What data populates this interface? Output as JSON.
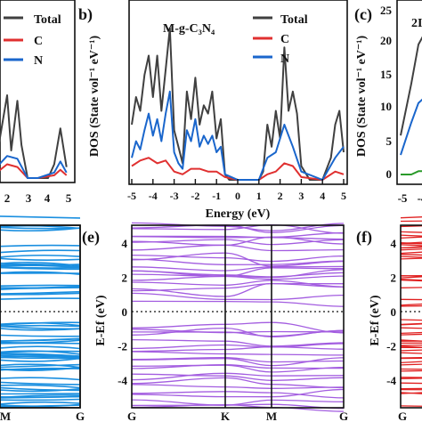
{
  "panels": [
    {
      "id": "a",
      "label": "",
      "xlabel": "",
      "legend": [
        "Total",
        "C",
        "N"
      ],
      "xticks": [
        "2",
        "3",
        "4",
        "5"
      ]
    },
    {
      "id": "b",
      "label": "b)",
      "title": "M-g-C₃N₄",
      "xlabel": "Energy (eV)",
      "ylabel": "DOS (State vol⁻¹ eV⁻¹)",
      "legend": [
        "Total",
        "C",
        "N"
      ],
      "xticks": [
        "-5",
        "-4",
        "-3",
        "-2",
        "-1",
        "0",
        "1",
        "2",
        "3",
        "4",
        "5"
      ]
    },
    {
      "id": "c",
      "label": "(c)",
      "title": "2I",
      "ylabel": "DOS (State vol⁻¹ eV⁻¹)",
      "yticks": [
        "25",
        "20",
        "15",
        "10",
        "5",
        "0"
      ],
      "xticks": [
        "-5",
        "-4"
      ]
    },
    {
      "id": "d",
      "label": "",
      "xticks": [
        "M",
        "G"
      ]
    },
    {
      "id": "e",
      "label": "(e)",
      "ylabel": "E-Ef (eV)",
      "yticks": [
        "4",
        "2",
        "0",
        "-2",
        "-4"
      ],
      "kpoints": [
        "G",
        "K",
        "M",
        "G"
      ]
    },
    {
      "id": "f",
      "label": "(f)",
      "ylabel": "E-Ef (eV)",
      "yticks": [
        "4",
        "2",
        "0",
        "-2",
        "-4"
      ],
      "xticks": [
        "G"
      ]
    }
  ],
  "chart_data": [
    {
      "type": "line",
      "panel": "a",
      "title": "",
      "series": [
        {
          "name": "Total",
          "color": "#404040",
          "x": [
            1.5,
            2.0,
            2.2,
            2.5,
            2.7,
            3.0,
            3.5,
            4.0,
            4.3,
            4.6,
            4.9
          ],
          "y": [
            8,
            30,
            10,
            28,
            12,
            0,
            0,
            0,
            5,
            18,
            4
          ]
        },
        {
          "name": "C",
          "color": "#e03030",
          "x": [
            1.5,
            2.0,
            2.5,
            3.0,
            3.5,
            4.3,
            4.6,
            4.9
          ],
          "y": [
            2,
            5,
            4,
            0,
            0,
            1,
            3,
            1
          ]
        },
        {
          "name": "N",
          "color": "#1a66cc",
          "x": [
            1.5,
            2.0,
            2.5,
            3.0,
            3.5,
            4.3,
            4.6,
            4.9
          ],
          "y": [
            4,
            8,
            7,
            0,
            0,
            2,
            6,
            2
          ]
        }
      ]
    },
    {
      "type": "line",
      "panel": "b",
      "title": "M-g-C₃N₄",
      "xlabel": "Energy (eV)",
      "ylabel": "DOS (State vol⁻¹ eV⁻¹)",
      "xlim": [
        -5,
        5
      ],
      "series": [
        {
          "name": "Total",
          "color": "#404040",
          "x": [
            -5,
            -4.8,
            -4.6,
            -4.4,
            -4.2,
            -4.0,
            -3.8,
            -3.6,
            -3.4,
            -3.2,
            -3.0,
            -2.8,
            -2.6,
            -2.4,
            -2.2,
            -2.0,
            -1.8,
            -1.6,
            -1.4,
            -1.2,
            -1.0,
            -0.8,
            -0.6,
            -0.4,
            0,
            0.6,
            1.0,
            1.2,
            1.4,
            1.6,
            1.8,
            2.0,
            2.2,
            2.4,
            2.6,
            2.8,
            3.0,
            3.4,
            4.0,
            4.4,
            4.6,
            4.8,
            5.0
          ],
          "y": [
            20,
            30,
            25,
            38,
            45,
            30,
            45,
            25,
            40,
            55,
            18,
            12,
            6,
            32,
            22,
            37,
            20,
            27,
            24,
            32,
            15,
            22,
            2,
            0,
            0,
            0,
            0,
            3,
            20,
            12,
            25,
            15,
            48,
            25,
            32,
            24,
            5,
            0,
            0,
            8,
            20,
            25,
            10
          ]
        },
        {
          "name": "C",
          "color": "#e03030",
          "x": [
            -5,
            -4.6,
            -4.2,
            -3.8,
            -3.4,
            -3.0,
            -2.6,
            -2.2,
            -1.8,
            -1.4,
            -1.0,
            -0.6,
            0,
            1.0,
            1.4,
            1.8,
            2.2,
            2.6,
            3.0,
            4.0,
            4.6,
            5.0
          ],
          "y": [
            5,
            7,
            8,
            6,
            7,
            3,
            2,
            4,
            4,
            3,
            3,
            1,
            0,
            0,
            2,
            3,
            6,
            5,
            1,
            0,
            3,
            2
          ]
        },
        {
          "name": "N",
          "color": "#1a66cc",
          "x": [
            -5,
            -4.8,
            -4.6,
            -4.4,
            -4.2,
            -4.0,
            -3.8,
            -3.6,
            -3.4,
            -3.2,
            -3.0,
            -2.8,
            -2.6,
            -2.4,
            -2.2,
            -2.0,
            -1.8,
            -1.6,
            -1.4,
            -1.2,
            -1.0,
            -0.8,
            -0.6,
            0,
            1.0,
            1.4,
            1.8,
            2.2,
            2.6,
            3.0,
            4.0,
            4.6,
            5.0
          ],
          "y": [
            8,
            14,
            11,
            18,
            24,
            16,
            22,
            14,
            24,
            32,
            10,
            6,
            4,
            18,
            14,
            22,
            12,
            16,
            13,
            16,
            10,
            12,
            2,
            0,
            0,
            8,
            10,
            20,
            12,
            3,
            0,
            8,
            12
          ]
        }
      ]
    },
    {
      "type": "line",
      "panel": "c",
      "title": "2I",
      "ylabel": "DOS (State vol⁻¹ eV⁻¹)",
      "ylim": [
        0,
        25
      ],
      "series": [
        {
          "name": "Total",
          "color": "#404040",
          "x": [
            -5,
            -4.7,
            -4.5,
            -4.3
          ],
          "y": [
            6,
            14,
            20,
            22
          ]
        },
        {
          "name": "N",
          "color": "#1a66cc",
          "x": [
            -5,
            -4.7,
            -4.5,
            -4.3
          ],
          "y": [
            3,
            8,
            11,
            12
          ]
        },
        {
          "name": "C",
          "color": "#2a9a2a",
          "x": [
            -5,
            -4.7,
            -4.5,
            -4.3
          ],
          "y": [
            0,
            0,
            0.5,
            0.5
          ]
        }
      ]
    },
    {
      "type": "line",
      "panel": "d",
      "title": "band structure",
      "xticks": [
        "M",
        "G"
      ]
    },
    {
      "type": "line",
      "panel": "e",
      "title": "band structure",
      "ylabel": "E-Ef (eV)",
      "ylim": [
        -5,
        5
      ],
      "kpoints": [
        "G",
        "K",
        "M",
        "G"
      ]
    },
    {
      "type": "line",
      "panel": "f",
      "title": "band structure",
      "ylabel": "E-Ef (eV)",
      "ylim": [
        -5,
        5
      ],
      "xticks": [
        "G"
      ]
    }
  ]
}
